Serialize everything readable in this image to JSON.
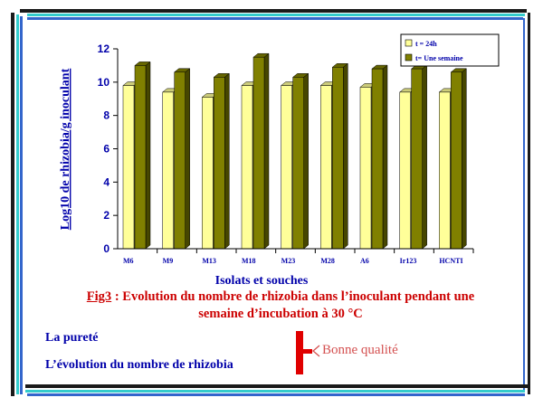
{
  "chart_data": {
    "type": "bar",
    "categories": [
      "M6",
      "M9",
      "M13",
      "M18",
      "M23",
      "M28",
      "A6",
      "Ir123",
      "HCNTI"
    ],
    "series": [
      {
        "name": "t = 24h",
        "color": "#ffff99",
        "values": [
          9.8,
          9.4,
          9.1,
          9.8,
          9.8,
          9.8,
          9.7,
          9.4,
          9.4
        ]
      },
      {
        "name": "t= Une semaine",
        "color": "#808000",
        "values": [
          11.0,
          10.6,
          10.3,
          11.5,
          10.3,
          10.9,
          10.8,
          10.8,
          10.6
        ]
      }
    ],
    "ylim": [
      0,
      12
    ],
    "yticks": [
      0,
      2,
      4,
      6,
      8,
      10,
      12
    ],
    "xlabel": "Isolats et souches",
    "ylabel": "Log10 de rhizobia/g inoculant",
    "grid": false,
    "legend_position": "top-right"
  },
  "caption": {
    "fig_label": "Fig3",
    "line1": " : Evolution du nombre de rhizobia dans  l’inoculant pendant une",
    "line2": "semaine d’incubation à 30 °C"
  },
  "notes": {
    "item1": "La pureté",
    "item2": "L’évolution du nombre de rhizobia",
    "conclusion": "Bonne qualité"
  },
  "colors": {
    "frame_dark": "#1a1a1a",
    "frame_cyan": "#33cccc",
    "frame_blue": "#3366cc",
    "axis_label": "#0000aa",
    "caption": "#cc0000",
    "brace": "#e00000"
  }
}
